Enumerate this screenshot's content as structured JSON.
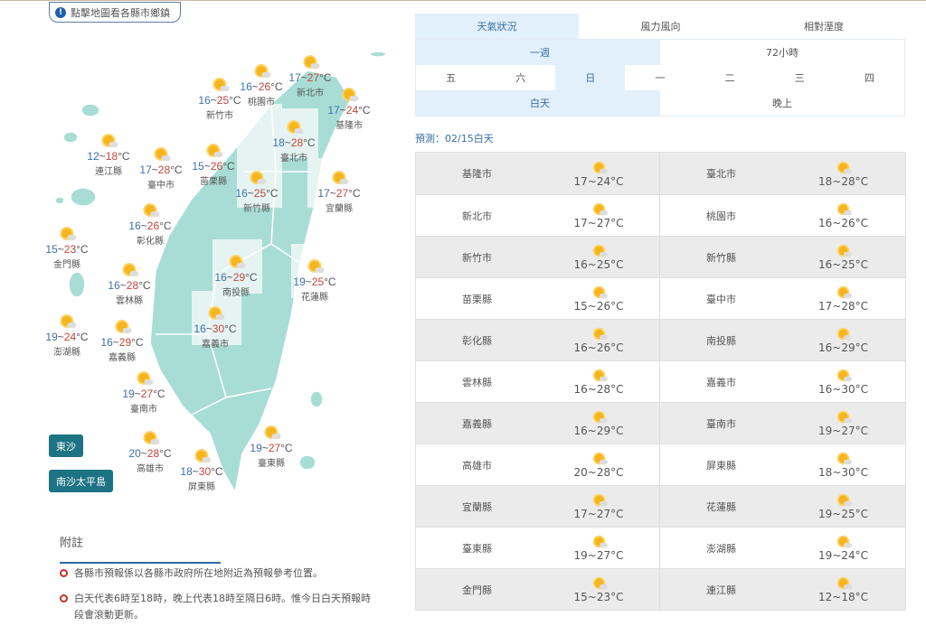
{
  "hint": {
    "icon": "info-icon",
    "label": "點擊地圖看各縣市鄉鎮"
  },
  "map": {
    "unit": "°C",
    "counties": [
      {
        "name": "新竹市",
        "low": 16,
        "high": 25
      },
      {
        "name": "桃園市",
        "low": 16,
        "high": 26
      },
      {
        "name": "新北市",
        "low": 17,
        "high": 27
      },
      {
        "name": "基隆市",
        "low": 17,
        "high": 24
      },
      {
        "name": "連江縣",
        "low": 12,
        "high": 18
      },
      {
        "name": "臺中市",
        "low": 17,
        "high": 28
      },
      {
        "name": "苗栗縣",
        "low": 15,
        "high": 26
      },
      {
        "name": "臺北市",
        "low": 18,
        "high": 28
      },
      {
        "name": "新竹縣",
        "low": 16,
        "high": 25
      },
      {
        "name": "宜蘭縣",
        "low": 17,
        "high": 27
      },
      {
        "name": "彰化縣",
        "low": 16,
        "high": 26
      },
      {
        "name": "金門縣",
        "low": 15,
        "high": 23
      },
      {
        "name": "南投縣",
        "low": 16,
        "high": 29
      },
      {
        "name": "花蓮縣",
        "low": 19,
        "high": 25
      },
      {
        "name": "雲林縣",
        "low": 16,
        "high": 28
      },
      {
        "name": "嘉義市",
        "low": 16,
        "high": 30
      },
      {
        "name": "澎湖縣",
        "low": 19,
        "high": 24
      },
      {
        "name": "嘉義縣",
        "low": 16,
        "high": 29
      },
      {
        "name": "臺南市",
        "low": 19,
        "high": 27
      },
      {
        "name": "臺東縣",
        "low": 19,
        "high": 27
      },
      {
        "name": "高雄市",
        "low": 20,
        "high": 28
      },
      {
        "name": "屏東縣",
        "low": 18,
        "high": 30
      }
    ],
    "buttons": [
      "東沙",
      "南沙太平島"
    ],
    "colors": {
      "land": "#a8ddd5",
      "low": "#3f6fa8",
      "high": "#c4443c",
      "button": "#1b7384"
    }
  },
  "notes": {
    "title": "附註",
    "items": [
      "各縣市預報係以各縣市政府所在地附近為預報參考位置。",
      "白天代表6時至18時，晚上代表18時至隔日6時。惟今日白天預報時段會滾動更新。"
    ]
  },
  "tabs": {
    "main": [
      "天氣狀況",
      "風力風向",
      "相對溼度"
    ],
    "range": [
      "一週",
      "72小時"
    ],
    "days": [
      "五",
      "六",
      "日",
      "一",
      "二",
      "三",
      "四"
    ],
    "period": [
      "白天",
      "晚上"
    ]
  },
  "forecast_label": "預測：02/15白天",
  "table": [
    [
      {
        "name": "基隆市",
        "temp": "17~24°C"
      },
      {
        "name": "臺北市",
        "temp": "18~28°C"
      }
    ],
    [
      {
        "name": "新北市",
        "temp": "17~27°C"
      },
      {
        "name": "桃園市",
        "temp": "16~26°C"
      }
    ],
    [
      {
        "name": "新竹市",
        "temp": "16~25°C"
      },
      {
        "name": "新竹縣",
        "temp": "16~25°C"
      }
    ],
    [
      {
        "name": "苗栗縣",
        "temp": "15~26°C"
      },
      {
        "name": "臺中市",
        "temp": "17~28°C"
      }
    ],
    [
      {
        "name": "彰化縣",
        "temp": "16~26°C"
      },
      {
        "name": "南投縣",
        "temp": "16~29°C"
      }
    ],
    [
      {
        "name": "雲林縣",
        "temp": "16~28°C"
      },
      {
        "name": "嘉義市",
        "temp": "16~30°C"
      }
    ],
    [
      {
        "name": "嘉義縣",
        "temp": "16~29°C"
      },
      {
        "name": "臺南市",
        "temp": "19~27°C"
      }
    ],
    [
      {
        "name": "高雄市",
        "temp": "20~28°C"
      },
      {
        "name": "屏東縣",
        "temp": "18~30°C"
      }
    ],
    [
      {
        "name": "宜蘭縣",
        "temp": "17~27°C"
      },
      {
        "name": "花蓮縣",
        "temp": "19~25°C"
      }
    ],
    [
      {
        "name": "臺東縣",
        "temp": "19~27°C"
      },
      {
        "name": "澎湖縣",
        "temp": "19~24°C"
      }
    ],
    [
      {
        "name": "金門縣",
        "temp": "15~23°C"
      },
      {
        "name": "連江縣",
        "temp": "12~18°C"
      }
    ]
  ]
}
